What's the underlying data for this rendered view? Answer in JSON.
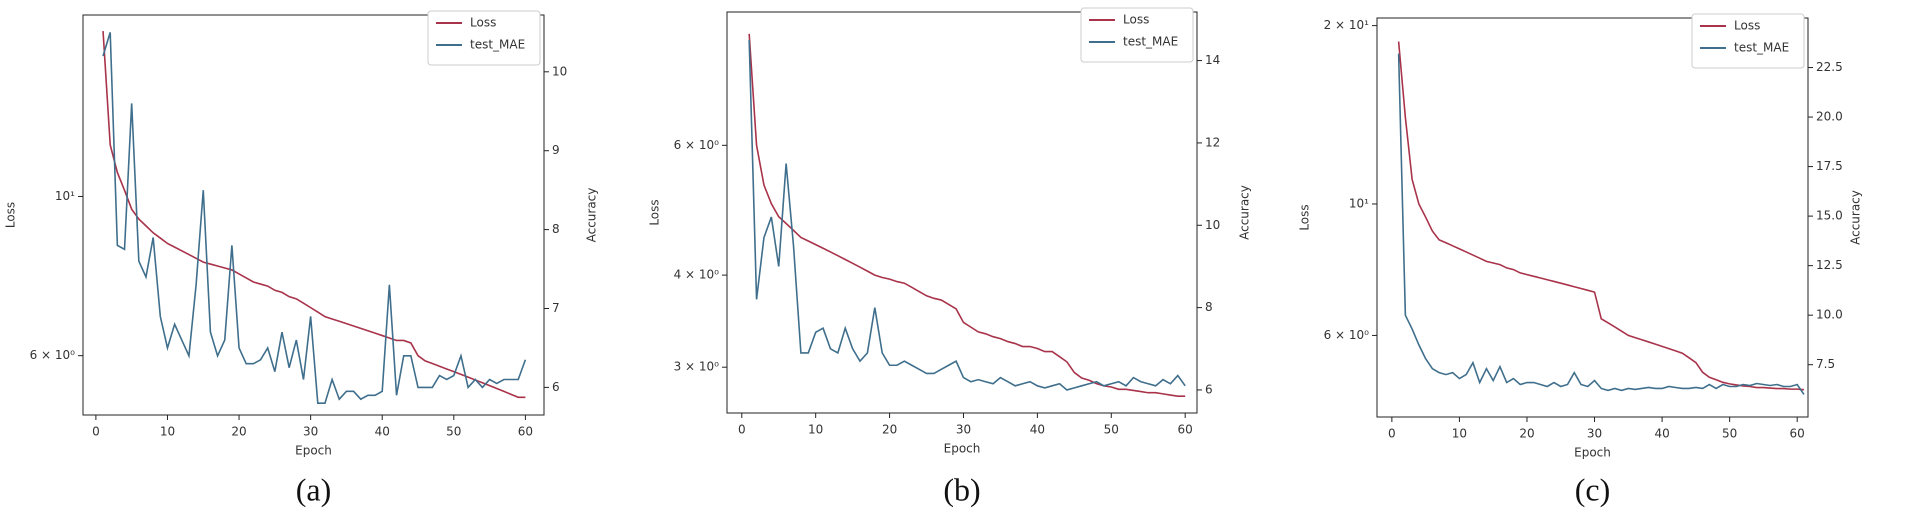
{
  "chart_data": [
    {
      "type": "line",
      "caption": "(a)",
      "xlabel": "Epoch",
      "ylabel": "Loss",
      "y2label": "Accuracy",
      "yscale": "log",
      "legend": "upper right",
      "xlim": [
        -1.8,
        62.6
      ],
      "xticks": [
        0,
        10,
        20,
        30,
        40,
        50,
        60
      ],
      "ylim": [
        4.96,
        17.9
      ],
      "yticks": [
        {
          "value": 6,
          "label": "6 × 10⁰"
        },
        {
          "value": 10,
          "label": "10¹"
        }
      ],
      "y2lim": [
        5.65,
        10.72
      ],
      "y2ticks": [
        6,
        7,
        8,
        9,
        10
      ],
      "x": [
        1,
        2,
        3,
        4,
        5,
        6,
        7,
        8,
        9,
        10,
        11,
        12,
        13,
        14,
        15,
        16,
        17,
        18,
        19,
        20,
        21,
        22,
        23,
        24,
        25,
        26,
        27,
        28,
        29,
        30,
        31,
        32,
        33,
        34,
        35,
        36,
        37,
        38,
        39,
        40,
        41,
        42,
        43,
        44,
        45,
        46,
        47,
        48,
        49,
        50,
        51,
        52,
        53,
        54,
        55,
        56,
        57,
        58,
        59,
        60
      ],
      "series": [
        {
          "name": "Loss",
          "color": "#a8334a",
          "values": [
            17,
            11.8,
            10.8,
            10.2,
            9.6,
            9.3,
            9.1,
            8.9,
            8.75,
            8.6,
            8.5,
            8.4,
            8.3,
            8.2,
            8.1,
            8.05,
            8.0,
            7.95,
            7.9,
            7.8,
            7.7,
            7.6,
            7.55,
            7.5,
            7.4,
            7.35,
            7.25,
            7.2,
            7.1,
            7.0,
            6.9,
            6.8,
            6.75,
            6.7,
            6.65,
            6.6,
            6.55,
            6.5,
            6.45,
            6.4,
            6.35,
            6.3,
            6.3,
            6.25,
            6.0,
            5.9,
            5.85,
            5.8,
            5.75,
            5.7,
            5.65,
            5.6,
            5.55,
            5.5,
            5.45,
            5.4,
            5.35,
            5.3,
            5.25,
            5.25
          ]
        },
        {
          "name": "test_MAE",
          "color": "#3f6f8c",
          "axis": "y2",
          "values": [
            10.2,
            10.5,
            7.8,
            7.75,
            9.6,
            7.6,
            7.4,
            7.9,
            6.9,
            6.5,
            6.8,
            6.6,
            6.4,
            7.3,
            8.5,
            6.7,
            6.4,
            6.6,
            7.8,
            6.5,
            6.3,
            6.3,
            6.35,
            6.5,
            6.2,
            6.7,
            6.25,
            6.6,
            6.1,
            6.9,
            5.8,
            5.8,
            6.1,
            5.85,
            5.95,
            5.95,
            5.85,
            5.9,
            5.9,
            5.95,
            7.3,
            5.9,
            6.4,
            6.4,
            6.0,
            6.0,
            6.0,
            6.15,
            6.1,
            6.15,
            6.4,
            6.0,
            6.1,
            6.0,
            6.1,
            6.05,
            6.1,
            6.1,
            6.1,
            6.35
          ]
        }
      ]
    },
    {
      "type": "line",
      "caption": "(b)",
      "xlabel": "Epoch",
      "ylabel": "Loss",
      "y2label": "Accuracy",
      "yscale": "log",
      "legend": "upper right",
      "xlim": [
        -2,
        61.6
      ],
      "xticks": [
        0,
        10,
        20,
        30,
        40,
        50,
        60
      ],
      "ylim": [
        2.6,
        9.1
      ],
      "yticks": [
        {
          "value": 3,
          "label": "3 × 10⁰"
        },
        {
          "value": 4,
          "label": "4 × 10⁰"
        },
        {
          "value": 6,
          "label": "6 × 10⁰"
        }
      ],
      "y2lim": [
        5.44,
        15.18
      ],
      "y2ticks": [
        6,
        8,
        10,
        12,
        14
      ],
      "x": [
        1,
        2,
        3,
        4,
        5,
        6,
        7,
        8,
        9,
        10,
        11,
        12,
        13,
        14,
        15,
        16,
        17,
        18,
        19,
        20,
        21,
        22,
        23,
        24,
        25,
        26,
        27,
        28,
        29,
        30,
        31,
        32,
        33,
        34,
        35,
        36,
        37,
        38,
        39,
        40,
        41,
        42,
        43,
        44,
        45,
        46,
        47,
        48,
        49,
        50,
        51,
        52,
        53,
        54,
        55,
        56,
        57,
        58,
        59,
        60
      ],
      "series": [
        {
          "name": "Loss",
          "color": "#a8334a",
          "values": [
            8.5,
            6.0,
            5.3,
            5.0,
            4.8,
            4.7,
            4.6,
            4.5,
            4.45,
            4.4,
            4.35,
            4.3,
            4.25,
            4.2,
            4.15,
            4.1,
            4.05,
            4.0,
            3.97,
            3.95,
            3.92,
            3.9,
            3.85,
            3.8,
            3.75,
            3.72,
            3.7,
            3.65,
            3.6,
            3.45,
            3.4,
            3.35,
            3.33,
            3.3,
            3.28,
            3.25,
            3.23,
            3.2,
            3.2,
            3.18,
            3.15,
            3.15,
            3.1,
            3.05,
            2.95,
            2.9,
            2.88,
            2.85,
            2.83,
            2.82,
            2.8,
            2.8,
            2.79,
            2.78,
            2.77,
            2.77,
            2.76,
            2.75,
            2.74,
            2.74
          ]
        },
        {
          "name": "test_MAE",
          "color": "#3f6f8c",
          "axis": "y2",
          "values": [
            14.5,
            8.2,
            9.7,
            10.2,
            9.0,
            11.5,
            9.5,
            6.9,
            6.9,
            7.4,
            7.5,
            7.0,
            6.9,
            7.5,
            7.0,
            6.7,
            6.9,
            8.0,
            6.9,
            6.6,
            6.6,
            6.7,
            6.6,
            6.5,
            6.4,
            6.4,
            6.5,
            6.6,
            6.7,
            6.3,
            6.2,
            6.25,
            6.2,
            6.15,
            6.3,
            6.2,
            6.1,
            6.15,
            6.2,
            6.1,
            6.05,
            6.1,
            6.15,
            6.0,
            6.05,
            6.1,
            6.15,
            6.2,
            6.1,
            6.15,
            6.2,
            6.1,
            6.3,
            6.2,
            6.15,
            6.1,
            6.25,
            6.15,
            6.35,
            6.1
          ]
        }
      ]
    },
    {
      "type": "line",
      "caption": "(c)",
      "xlabel": "Epoch",
      "ylabel": "Loss",
      "y2label": "Accuracy",
      "yscale": "log",
      "legend": "upper right",
      "xlim": [
        -2.2,
        61.6
      ],
      "xticks": [
        0,
        10,
        20,
        30,
        40,
        50,
        60
      ],
      "ylim": [
        4.37,
        20.6
      ],
      "yticks": [
        {
          "value": 6,
          "label": "6 × 10⁰"
        },
        {
          "value": 10,
          "label": "10¹"
        },
        {
          "value": 20,
          "label": "2 × 10¹"
        }
      ],
      "y2lim": [
        4.86,
        25.0
      ],
      "y2ticks": [
        7.5,
        {
          "value": 10,
          "label": "10.0"
        },
        12.5,
        {
          "value": 15,
          "label": "15.0"
        },
        17.5,
        {
          "value": 20,
          "label": "20.0"
        },
        22.5
      ],
      "x": [
        1,
        2,
        3,
        4,
        5,
        6,
        7,
        8,
        9,
        10,
        11,
        12,
        13,
        14,
        15,
        16,
        17,
        18,
        19,
        20,
        21,
        22,
        23,
        24,
        25,
        26,
        27,
        28,
        29,
        30,
        31,
        32,
        33,
        34,
        35,
        36,
        37,
        38,
        39,
        40,
        41,
        42,
        43,
        44,
        45,
        46,
        47,
        48,
        49,
        50,
        51,
        52,
        53,
        54,
        55,
        56,
        57,
        58,
        59,
        60,
        61
      ],
      "series": [
        {
          "name": "Loss",
          "color": "#a8334a",
          "values": [
            18.8,
            14,
            11,
            10,
            9.5,
            9.0,
            8.7,
            8.6,
            8.5,
            8.4,
            8.3,
            8.2,
            8.1,
            8.0,
            7.95,
            7.9,
            7.8,
            7.75,
            7.65,
            7.6,
            7.55,
            7.5,
            7.45,
            7.4,
            7.35,
            7.3,
            7.25,
            7.2,
            7.15,
            7.1,
            6.4,
            6.3,
            6.2,
            6.1,
            6.0,
            5.95,
            5.9,
            5.85,
            5.8,
            5.75,
            5.7,
            5.65,
            5.6,
            5.5,
            5.4,
            5.2,
            5.1,
            5.05,
            5.0,
            4.97,
            4.95,
            4.93,
            4.92,
            4.9,
            4.9,
            4.89,
            4.88,
            4.88,
            4.87,
            4.87,
            4.86
          ]
        },
        {
          "name": "test_MAE",
          "color": "#3f6f8c",
          "axis": "y2",
          "values": [
            23.2,
            10.0,
            9.3,
            8.5,
            7.8,
            7.3,
            7.1,
            7.0,
            7.1,
            6.8,
            7.0,
            7.6,
            6.6,
            7.3,
            6.7,
            7.4,
            6.6,
            6.8,
            6.5,
            6.6,
            6.6,
            6.5,
            6.4,
            6.6,
            6.4,
            6.5,
            7.1,
            6.5,
            6.4,
            6.7,
            6.3,
            6.2,
            6.3,
            6.2,
            6.3,
            6.25,
            6.3,
            6.35,
            6.3,
            6.3,
            6.4,
            6.35,
            6.3,
            6.3,
            6.35,
            6.3,
            6.5,
            6.3,
            6.5,
            6.4,
            6.4,
            6.5,
            6.45,
            6.55,
            6.5,
            6.45,
            6.5,
            6.4,
            6.4,
            6.5,
            6.0
          ]
        }
      ]
    }
  ]
}
